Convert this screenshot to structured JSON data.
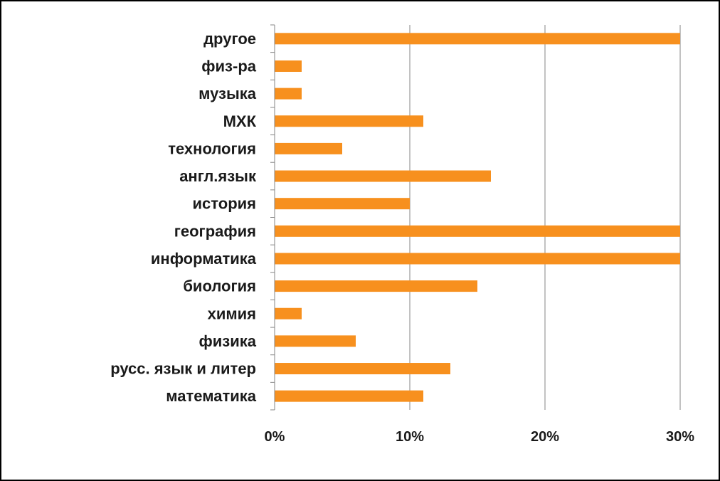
{
  "chart_data": {
    "type": "bar",
    "orientation": "horizontal",
    "categories": [
      "другое",
      "физ-ра",
      "музыка",
      "МХК",
      "технология",
      "англ.язык",
      "история",
      "география",
      "информатика",
      "биология",
      "химия",
      "физика",
      "русс. язык и литер",
      "математика"
    ],
    "values": [
      30,
      2,
      2,
      11,
      5,
      16,
      10,
      30,
      30,
      15,
      2,
      6,
      13,
      11
    ],
    "xticks": [
      "0%",
      "10%",
      "20%",
      "30%"
    ],
    "xtick_values": [
      0,
      10,
      20,
      30
    ],
    "xlim": [
      0,
      30
    ],
    "title": "",
    "xlabel": "",
    "ylabel": "",
    "grid": "vertical",
    "legend": "none",
    "bar_color": "#F7901E",
    "grid_color": "#868686"
  }
}
